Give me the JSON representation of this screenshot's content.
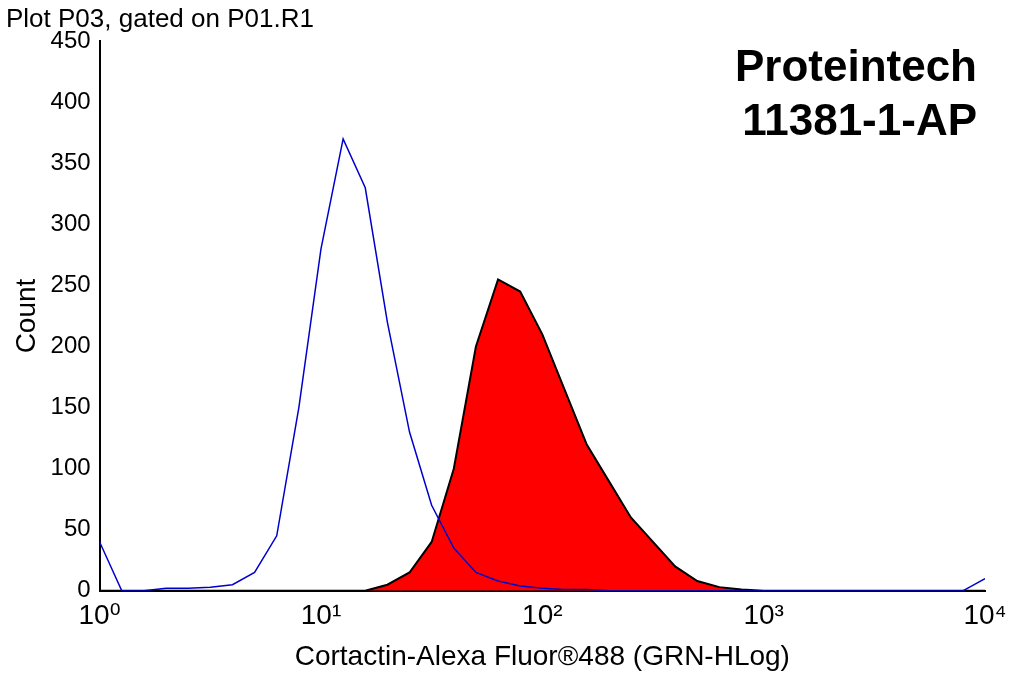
{
  "chart_data": {
    "type": "line",
    "title": "Plot P03, gated on P01.R1",
    "x_label": "Cortactin-Alexa Fluor®488 (GRN-HLog)",
    "y_label": "Count",
    "annotations": [
      "Proteintech",
      "11381-1-AP"
    ],
    "log": "x",
    "grid": false,
    "xlim": [
      1,
      10000
    ],
    "xticks": [
      {
        "value": 1,
        "label": "10⁰"
      },
      {
        "value": 10,
        "label": "10¹"
      },
      {
        "value": 100,
        "label": "10²"
      },
      {
        "value": 1000,
        "label": "10³"
      },
      {
        "value": 10000,
        "label": "10⁴"
      }
    ],
    "ylim": [
      0,
      450
    ],
    "yticks": [
      0,
      50,
      100,
      150,
      200,
      250,
      300,
      350,
      400,
      450
    ],
    "x": [
      1,
      1.259,
      1.585,
      1.995,
      2.512,
      3.162,
      3.981,
      5.012,
      6.31,
      7.943,
      10,
      12.59,
      15.85,
      19.95,
      25.12,
      31.62,
      39.81,
      50.12,
      63.1,
      79.43,
      100,
      125.9,
      158.5,
      199.5,
      251.2,
      316.2,
      398.1,
      501.2,
      631,
      794.3,
      1000,
      1259,
      1585,
      1995,
      2512,
      3162,
      3981,
      5012,
      6310,
      7943,
      10000
    ],
    "series": [
      {
        "type": "line",
        "color": "#0000cc",
        "values": [
          40,
          0,
          0,
          2,
          2,
          3,
          5,
          15,
          45,
          150,
          280,
          370,
          330,
          220,
          130,
          70,
          35,
          15,
          8,
          4,
          2,
          1,
          1,
          0,
          0,
          0,
          0,
          0,
          0,
          0,
          0,
          0,
          0,
          0,
          0,
          0,
          0,
          0,
          0,
          0,
          10
        ]
      },
      {
        "type": "area",
        "color": "#ff0000",
        "values": [
          0,
          0,
          0,
          0,
          0,
          0,
          0,
          0,
          0,
          0,
          0,
          0,
          0,
          5,
          15,
          40,
          100,
          200,
          255,
          245,
          210,
          165,
          120,
          90,
          60,
          40,
          20,
          8,
          3,
          1,
          0,
          0,
          0,
          0,
          0,
          0,
          0,
          0,
          0,
          0,
          0
        ]
      }
    ]
  }
}
